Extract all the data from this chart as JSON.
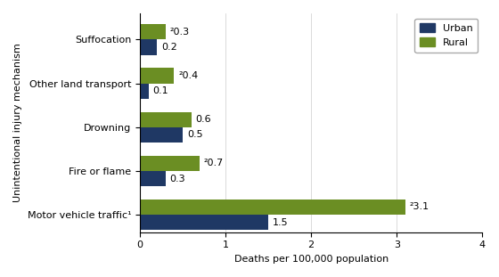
{
  "categories": [
    "Suffocation",
    "Other land transport",
    "Drowning",
    "Fire or flame",
    "Motor vehicle traffic¹"
  ],
  "urban_values": [
    0.2,
    0.1,
    0.5,
    0.3,
    1.5
  ],
  "rural_values": [
    0.3,
    0.4,
    0.6,
    0.7,
    3.1
  ],
  "urban_labels": [
    "0.2",
    "0.1",
    "0.5",
    "0.3",
    "1.5"
  ],
  "rural_labels": [
    "²0.3",
    "²0.4",
    "0.6",
    "²0.7",
    "²3.1"
  ],
  "urban_color": "#1F3864",
  "rural_color": "#6B8E23",
  "xlabel": "Deaths per 100,000 population",
  "ylabel": "Unintentional injury mechanism",
  "xlim": [
    0,
    4
  ],
  "xticks": [
    0,
    1,
    2,
    3,
    4
  ],
  "legend_urban": "Urban",
  "legend_rural": "Rural",
  "bar_height": 0.35,
  "figsize": [
    5.6,
    3.11
  ],
  "dpi": 100
}
